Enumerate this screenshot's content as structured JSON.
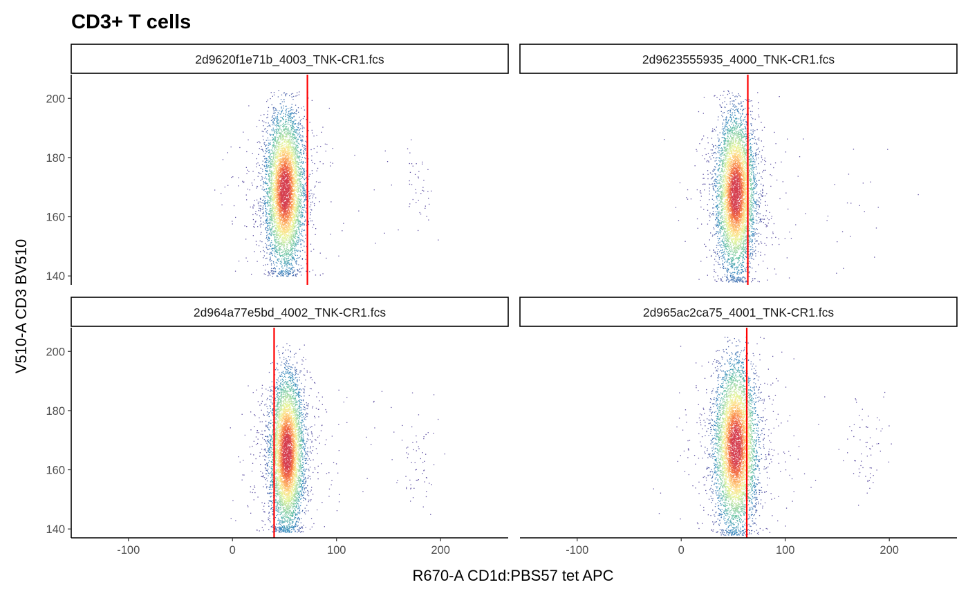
{
  "chart_data": {
    "type": "scatter",
    "title": "CD3+ T cells",
    "xlabel": "R670-A CD1d:PBS57 tet APC",
    "ylabel": "V510-A CD3 BV510",
    "xlim": [
      -155,
      265
    ],
    "ylim": [
      137,
      208
    ],
    "xticks": [
      -100,
      0,
      100,
      200
    ],
    "yticks": [
      140,
      160,
      180,
      200
    ],
    "xtick_labels": [
      "-100",
      "0",
      "100",
      "200"
    ],
    "ytick_labels": [
      "140",
      "160",
      "180",
      "200"
    ],
    "grid": false,
    "legend": "none",
    "gate_color": "#ff0000",
    "density_colors": [
      "#5e4fa2",
      "#3288bd",
      "#66c2a5",
      "#abdda4",
      "#e6f598",
      "#fee08b",
      "#fdae61",
      "#f46d43",
      "#d53e4f"
    ],
    "panels": [
      {
        "label": "2d9620f1e71b_4003_TNK-CR1.fcs",
        "gate_x": 72,
        "main_population": {
          "x_center": 50,
          "x_sd": 9,
          "y_center": 169,
          "y_sd": 13,
          "y_range": [
            140,
            203
          ],
          "n": 6000
        },
        "minor_population": {
          "x_center": 178,
          "x_sd": 9,
          "y_center": 170,
          "y_sd": 7,
          "n": 35
        }
      },
      {
        "label": "2d9623555935_4000_TNK-CR1.fcs",
        "gate_x": 64,
        "main_population": {
          "x_center": 52,
          "x_sd": 9,
          "y_center": 168,
          "y_sd": 13,
          "y_range": [
            138,
            203
          ],
          "n": 6000
        },
        "minor_population": {
          "x_center": 170,
          "x_sd": 25,
          "y_center": 165,
          "y_sd": 15,
          "n": 10
        }
      },
      {
        "label": "2d964a77e5bd_4002_TNK-CR1.fcs",
        "gate_x": 40,
        "main_population": {
          "x_center": 52,
          "x_sd": 8,
          "y_center": 166,
          "y_sd": 13,
          "y_range": [
            139,
            203
          ],
          "n": 6000
        },
        "minor_population": {
          "x_center": 178,
          "x_sd": 10,
          "y_center": 160,
          "y_sd": 9,
          "n": 60
        }
      },
      {
        "label": "2d965ac2ca75_4001_TNK-CR1.fcs",
        "gate_x": 63,
        "main_population": {
          "x_center": 52,
          "x_sd": 10,
          "y_center": 168,
          "y_sd": 14,
          "y_range": [
            138,
            205
          ],
          "n": 6000
        },
        "minor_population": {
          "x_center": 180,
          "x_sd": 10,
          "y_center": 167,
          "y_sd": 8,
          "n": 60
        }
      }
    ]
  }
}
